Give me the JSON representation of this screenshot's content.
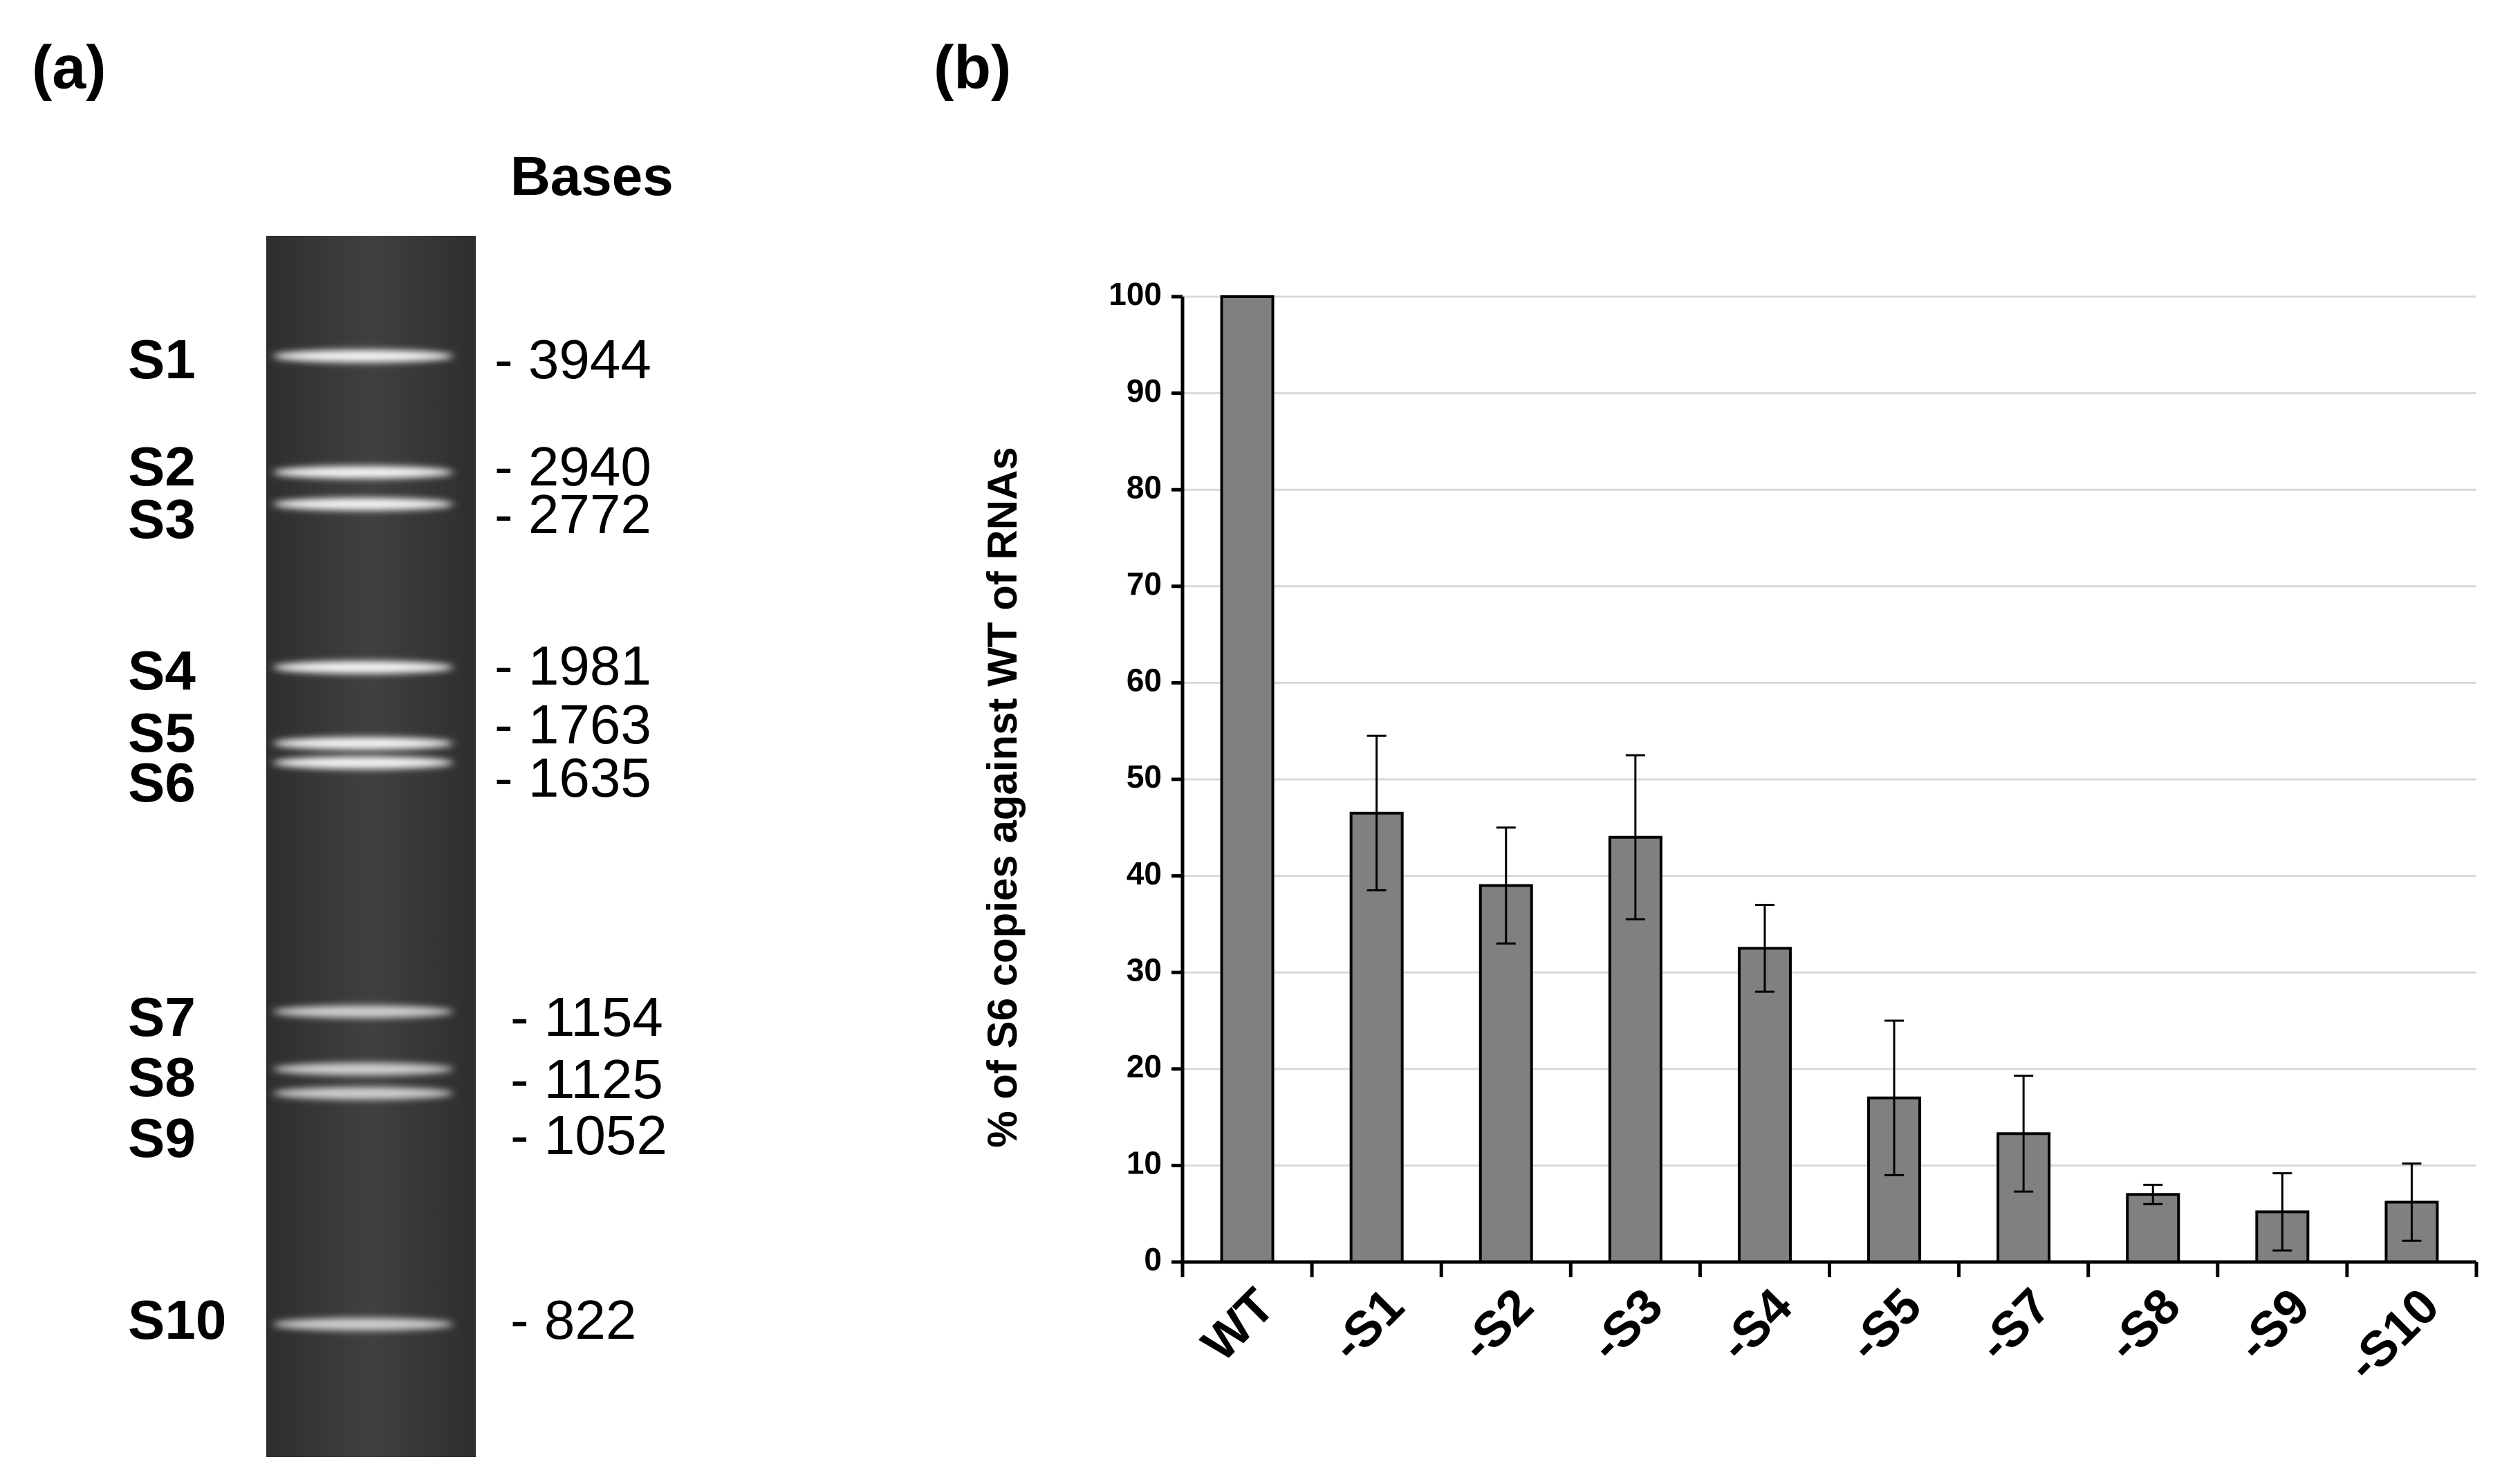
{
  "panel_a": {
    "label": "(a)",
    "header": "Bases",
    "bands": [
      {
        "name": "S1",
        "size": "- 3944"
      },
      {
        "name": "S2",
        "size": "- 2940"
      },
      {
        "name": "S3",
        "size": "- 2772"
      },
      {
        "name": "S4",
        "size": "- 1981"
      },
      {
        "name": "S5",
        "size": "- 1763"
      },
      {
        "name": "S6",
        "size": "- 1635"
      },
      {
        "name": "S7",
        "size": "- 1154"
      },
      {
        "name": "S8",
        "size": "- 1125"
      },
      {
        "name": "S9",
        "size": "- 1052"
      },
      {
        "name": "S10",
        "size": "- 822"
      }
    ]
  },
  "chart_data": {
    "type": "bar",
    "panel_label": "(b)",
    "y_label": "% of S6 copies  against WT of  RNAs",
    "categories": [
      "WT",
      "-S1",
      "-S2",
      "-S3",
      "-S4",
      "-S5",
      "-S7",
      "-S8",
      "-S9",
      "-S10"
    ],
    "values": [
      100,
      46.5,
      39,
      44,
      32.5,
      17,
      13.3,
      7,
      5.2,
      6.2
    ],
    "errors": [
      null,
      8,
      6,
      8.5,
      4.5,
      8,
      6,
      1,
      4,
      4
    ],
    "color": "#808080",
    "ylim": [
      0,
      100
    ],
    "yticks": [
      0,
      10,
      20,
      30,
      40,
      50,
      60,
      70,
      80,
      90,
      100
    ],
    "grid": true
  }
}
